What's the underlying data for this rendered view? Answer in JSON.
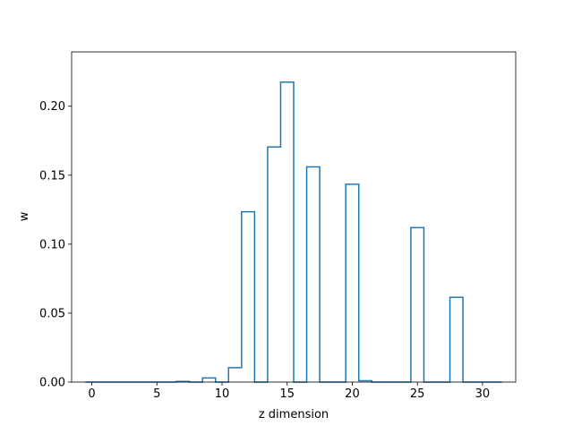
{
  "chart_data": {
    "type": "bar",
    "style": "step-outline",
    "xlabel": "z dimension",
    "ylabel": "w",
    "xlim": [
      -1.55,
      32.55
    ],
    "ylim": [
      0,
      0.2394
    ],
    "x_ticks": [
      0,
      5,
      10,
      15,
      20,
      25,
      30
    ],
    "x_tick_labels": [
      "0",
      "5",
      "10",
      "15",
      "20",
      "25",
      "30"
    ],
    "y_ticks": [
      0,
      0.05,
      0.1,
      0.15,
      0.2
    ],
    "y_tick_labels": [
      "0.00",
      "0.05",
      "0.10",
      "0.15",
      "0.20"
    ],
    "grid": false,
    "series_color": "#1f77b4",
    "x": [
      0,
      1,
      2,
      3,
      4,
      5,
      6,
      7,
      8,
      9,
      10,
      11,
      12,
      13,
      14,
      15,
      16,
      17,
      18,
      19,
      20,
      21,
      22,
      23,
      24,
      25,
      26,
      27,
      28,
      29,
      30,
      31
    ],
    "values": [
      0,
      0,
      0,
      0,
      0,
      0,
      0,
      0.0005,
      0,
      0.003,
      0,
      0.0105,
      0.1235,
      0,
      0.1705,
      0.2175,
      0,
      0.156,
      0,
      0,
      0.1435,
      0.001,
      0,
      0,
      0,
      0.112,
      0,
      0,
      0.0615,
      0,
      0,
      0
    ]
  }
}
